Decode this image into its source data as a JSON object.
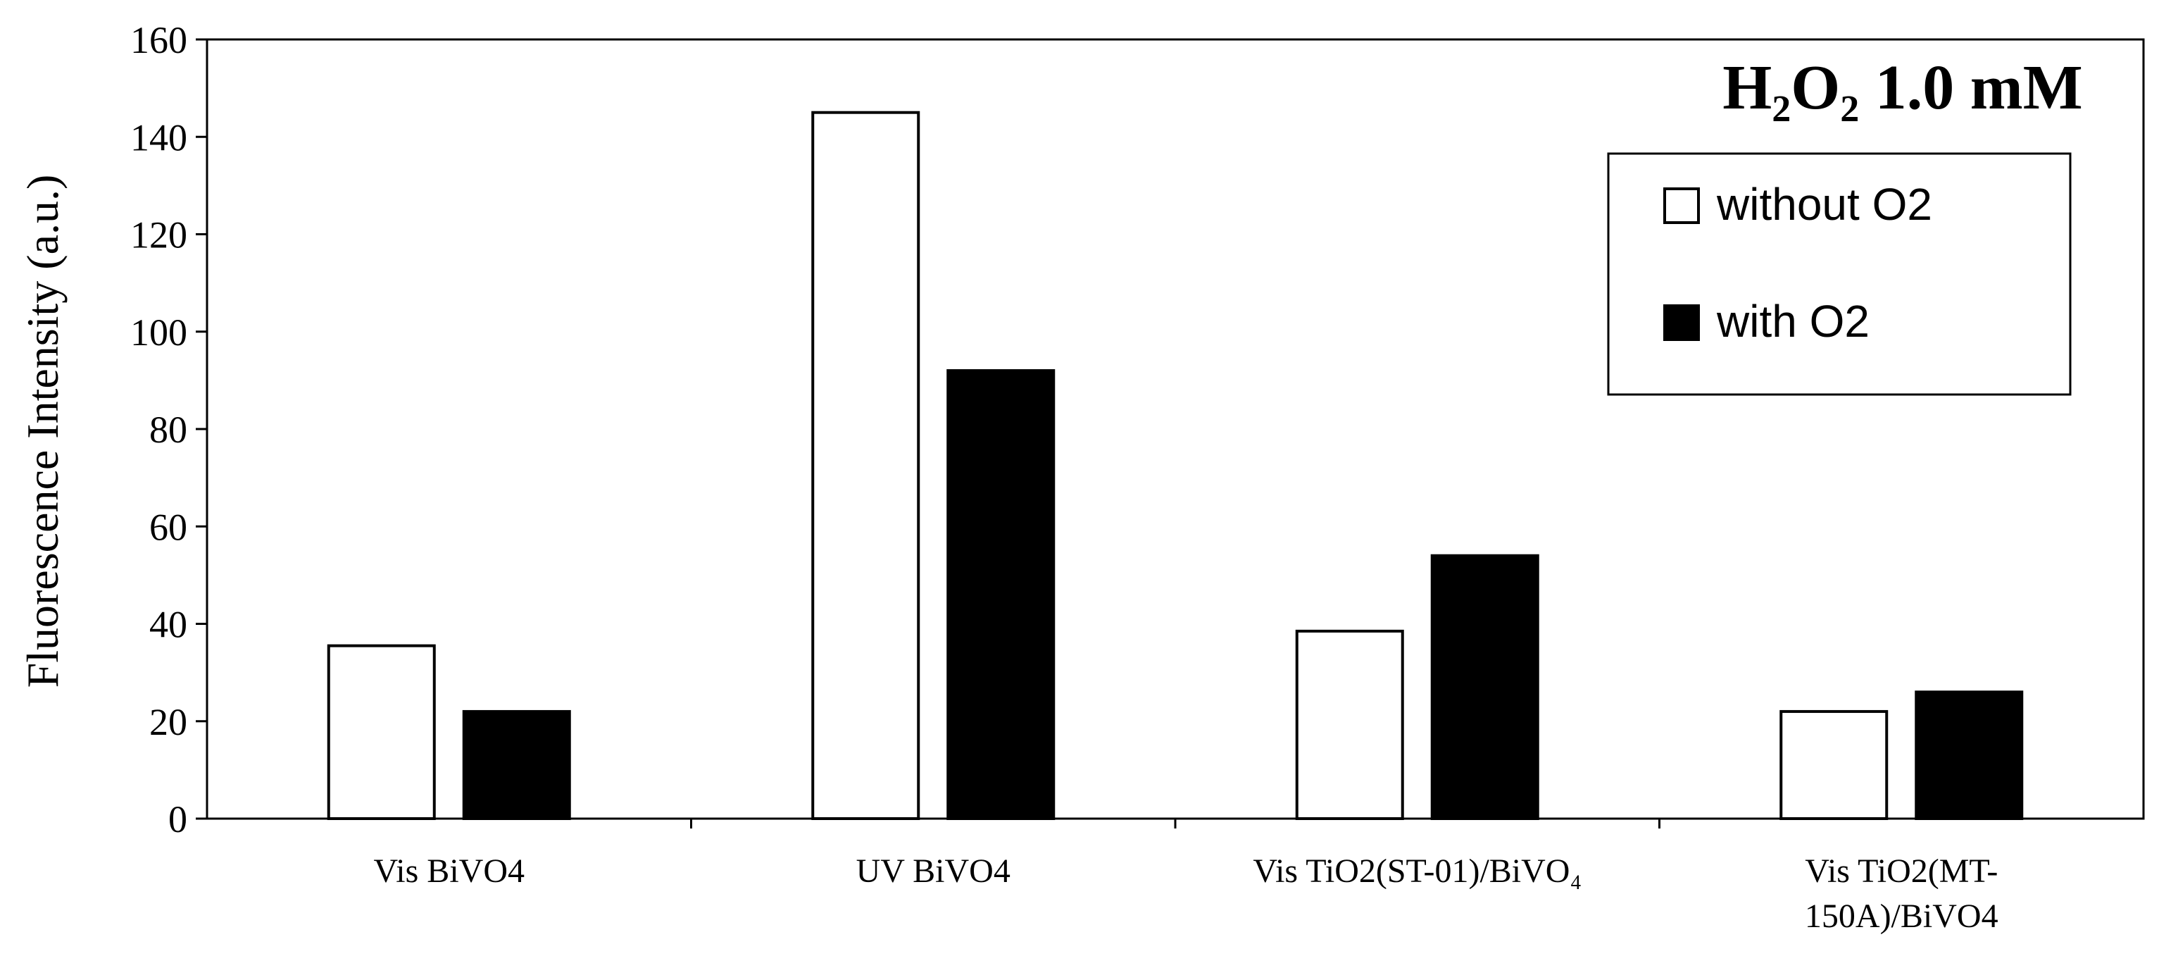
{
  "chart_data": {
    "type": "bar",
    "title": "H₂O₂ 1.0 mM",
    "ylabel": "Fluorescence  Intensity (a.u.)",
    "xlabel": "",
    "ylim": [
      0,
      160
    ],
    "yticks": [
      "0",
      "20",
      "40",
      "60",
      "80",
      "100",
      "120",
      "140",
      "160"
    ],
    "categories": [
      [
        "Vis BiVO4"
      ],
      [
        "UV BiVO4"
      ],
      [
        "Vis TiO2(ST-01)/BiVO₄"
      ],
      [
        "Vis TiO2(MT-",
        "150A)/BiVO4"
      ]
    ],
    "series": [
      {
        "name": "without O2",
        "values": [
          35.5,
          145,
          38.5,
          22
        ],
        "fill": "#ffffff",
        "stroke": "#000000"
      },
      {
        "name": "with O2",
        "values": [
          22,
          92,
          54,
          26
        ],
        "fill": "#000000",
        "stroke": "#000000"
      }
    ],
    "legend_position": "top-right",
    "grid": false
  }
}
